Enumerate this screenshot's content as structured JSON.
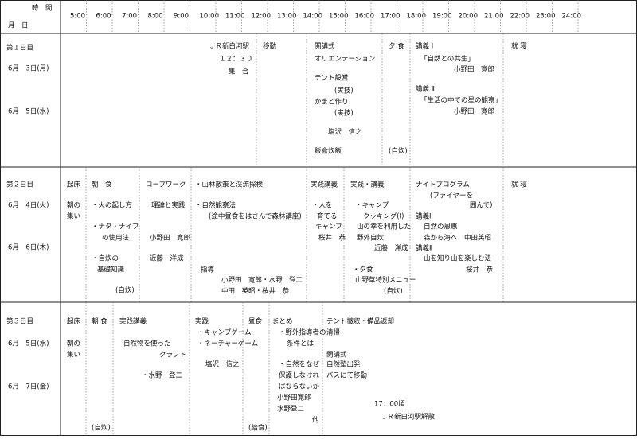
{
  "header": {
    "time_label": "時　間",
    "date_label": "月　日",
    "hours": [
      "5:00",
      "6:00",
      "7:00",
      "8:00",
      "9:00",
      "10:00",
      "11:00",
      "12:00",
      "13:00",
      "14:00",
      "15:00",
      "16:00",
      "17:00",
      "18:00",
      "19:00",
      "20:00",
      "21:00",
      "22:00",
      "23:00",
      "24:00"
    ]
  },
  "days": [
    {
      "label": "第１日目",
      "dates": [
        "6月　3日(月)",
        "6月　5日(水)"
      ],
      "blocks": [
        [
          "ＪＲ新白河駅",
          "１２：３０",
          "集　合"
        ],
        [
          "移動"
        ],
        [
          "開講式",
          "オリエンテーション",
          "テント設営",
          "(実技)",
          "かまど作り",
          "(実技)",
          "塩沢　信之",
          "飯盒炊飯"
        ],
        [
          "夕 食",
          "(自炊)"
        ],
        [
          "講義 Ⅰ",
          "「自然との共生」",
          "小野田　寛郎",
          "講義 Ⅱ",
          "「生活の中での星の観察」",
          "小野田　寛郎"
        ],
        [
          "就 寝"
        ]
      ]
    },
    {
      "label": "第２日目",
      "dates": [
        "6月　4日(火)",
        "6月　6日(木)"
      ],
      "blocks": [
        [
          "起床",
          "朝の",
          "集い"
        ],
        [
          "朝　食",
          "・火の起し方",
          "・ナタ・ナイフ",
          "の使用法",
          "・自炊の",
          "基礎知識",
          "(自炊)"
        ],
        [
          "ロープワーク",
          "理論と実践",
          "小野田　寛郎",
          "近藤　洋成"
        ],
        [
          "・山林散策と渓流探検",
          "・自然観察法",
          "(途中昼食をはさんで森林講座)",
          "指導",
          "小野田　寛郎・水野　登二",
          "中田　英昭・桜井　恭"
        ],
        [
          "実践講義",
          "・人を",
          "育てる",
          "キャンプ",
          "桜井　恭"
        ],
        [
          "実践・講義",
          "・キャンプ",
          "クッキング(Ⅰ)",
          "山の幸を利用した",
          "野外自炊",
          "近藤　洋成",
          "・夕食",
          "山野草特別メニュー",
          "(自炊)"
        ],
        [
          "ナイトプログラム",
          "(ファイヤーを",
          "囲んで)",
          "講義Ⅰ",
          "自然の恩恵",
          "森から海へ　中田英昭",
          "講義Ⅱ",
          "山を知り山を楽しむ法",
          "桜井　恭"
        ],
        [
          "就 寝"
        ]
      ]
    },
    {
      "label": "第３日目",
      "dates": [
        "6月　5日(水)",
        "6月　7日(金)"
      ],
      "blocks": [
        [
          "起床",
          "朝の",
          "集い"
        ],
        [
          "朝 食",
          "(自炊)"
        ],
        [
          "実践講義",
          "自然物を使った",
          "クラフト",
          "・水野　登二"
        ],
        [
          "実践",
          "・キャンプゲーム",
          "・ネーチャーゲーム",
          "塩沢　信之"
        ],
        [
          "昼食",
          "(給食)"
        ],
        [
          "まとめ",
          "・野外指導者の",
          "条件とは",
          "・自然をなぜ",
          "保護しなけれ",
          "ばならないか",
          "小野田寛郎",
          "水野登二",
          "他"
        ],
        [
          "テント撤収・備品返却",
          "清掃",
          "閉講式",
          "自然塾出発",
          "バスにて移動",
          "17：00頃",
          "ＪＲ新白河駅解散"
        ]
      ]
    }
  ]
}
